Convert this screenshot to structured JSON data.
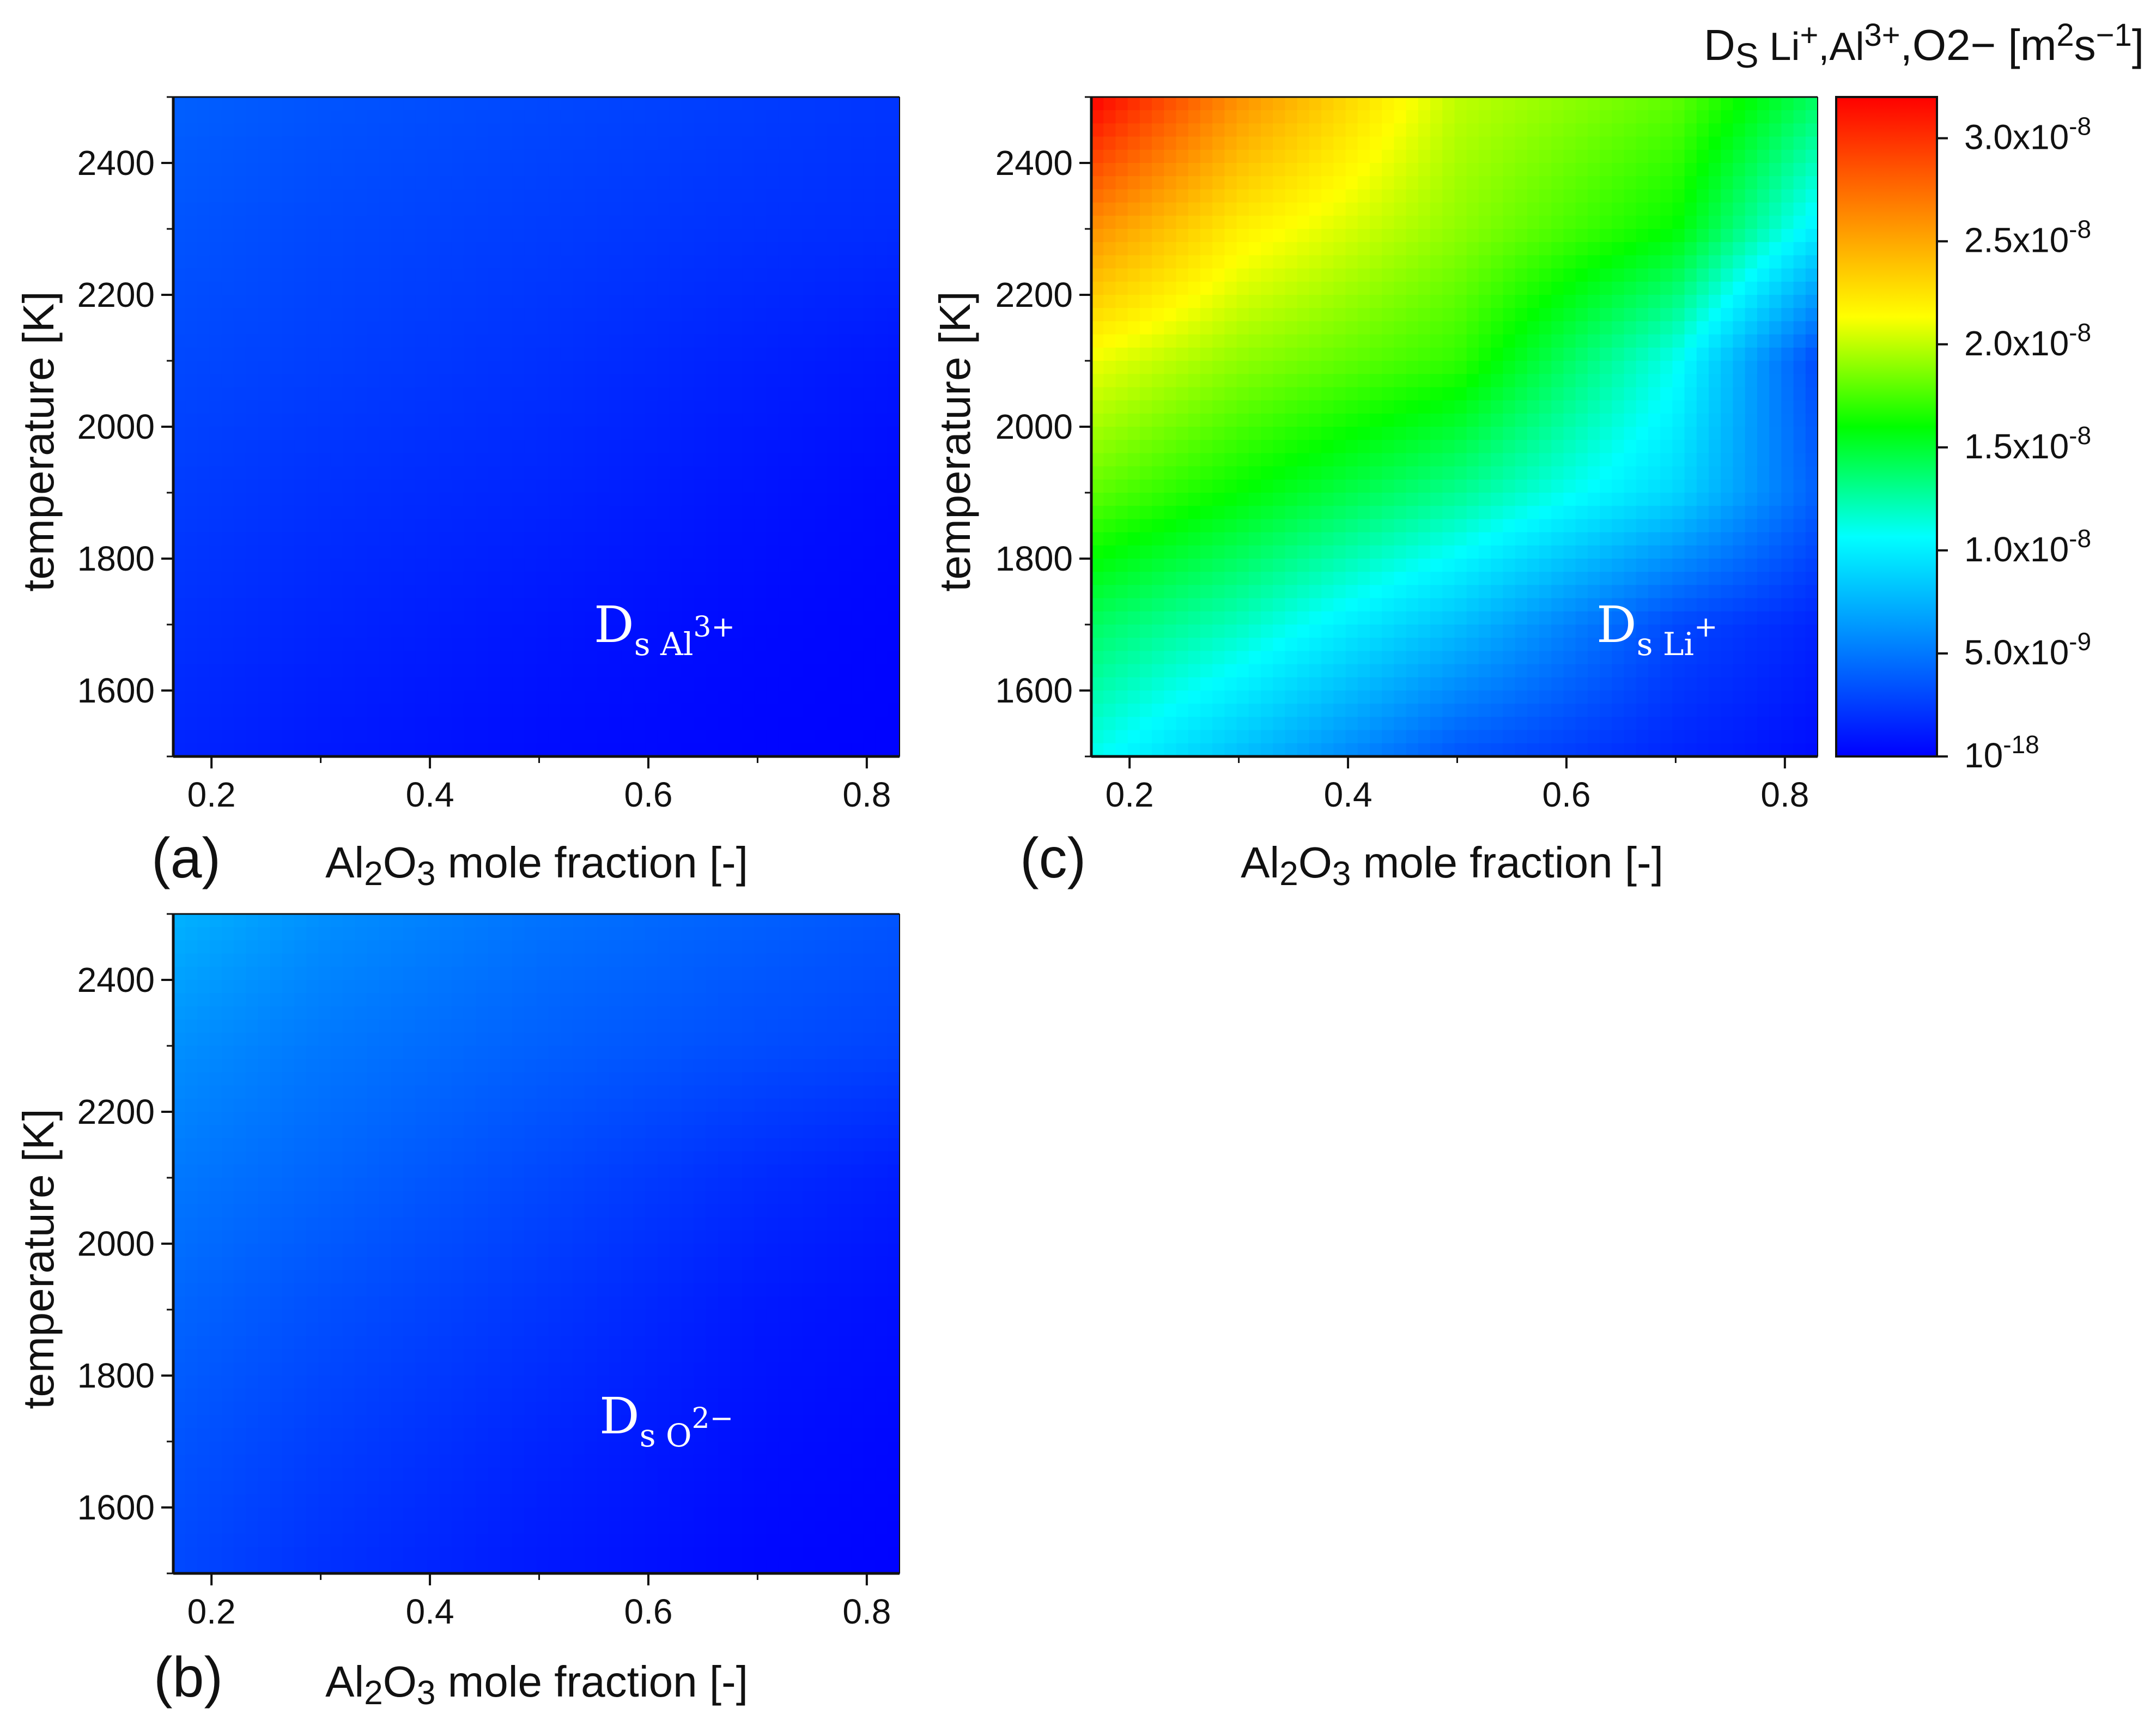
{
  "chart_data": [
    {
      "type": "heatmap",
      "panel_label": "(a)",
      "annotation": {
        "main": "D",
        "sub": "s Al",
        "sup": "3+"
      },
      "xlabel": {
        "pre": "Al",
        "s1": "2",
        "mid": "O",
        "s2": "3",
        "post": " mole fraction [-]"
      },
      "ylabel": "temperature [K]",
      "xlim": [
        0.165,
        0.83
      ],
      "ylim": [
        1500,
        2500
      ],
      "x_ticks": [
        0.2,
        0.4,
        0.6,
        0.8
      ],
      "x_tick_labels": [
        "0.2",
        "0.4",
        "0.6",
        "0.8"
      ],
      "y_ticks": [
        1600,
        1800,
        2000,
        2200,
        2400
      ],
      "y_tick_labels": [
        "1600",
        "1800",
        "2000",
        "2200",
        "2400"
      ],
      "x_values": [
        0.165,
        0.3,
        0.5,
        0.7,
        0.83
      ],
      "y_values": [
        1500,
        1700,
        1900,
        2100,
        2300,
        2500
      ],
      "values": [
        [
          1.5e-09,
          1e-09,
          5e-10,
          2e-10,
          1e-10
        ],
        [
          2e-09,
          1.5e-09,
          9e-10,
          4e-10,
          2e-10
        ],
        [
          2.5e-09,
          2e-09,
          1.5e-09,
          8e-10,
          4e-10
        ],
        [
          3e-09,
          2.6e-09,
          2e-09,
          1.3e-09,
          9e-10
        ],
        [
          3.5e-09,
          3e-09,
          2.5e-09,
          2e-09,
          1.8e-09
        ],
        [
          4e-09,
          3.5e-09,
          3e-09,
          2.5e-09,
          2.2e-09
        ]
      ]
    },
    {
      "type": "heatmap",
      "panel_label": "(b)",
      "annotation": {
        "main": "D",
        "sub": "s O",
        "sup": "2−"
      },
      "xlabel": {
        "pre": "Al",
        "s1": "2",
        "mid": "O",
        "s2": "3",
        "post": " mole fraction [-]"
      },
      "ylabel": "temperature [K]",
      "xlim": [
        0.165,
        0.83
      ],
      "ylim": [
        1500,
        2500
      ],
      "x_ticks": [
        0.2,
        0.4,
        0.6,
        0.8
      ],
      "x_tick_labels": [
        "0.2",
        "0.4",
        "0.6",
        "0.8"
      ],
      "y_ticks": [
        1600,
        1800,
        2000,
        2200,
        2400
      ],
      "y_tick_labels": [
        "1600",
        "1800",
        "2000",
        "2200",
        "2400"
      ],
      "x_values": [
        0.165,
        0.3,
        0.5,
        0.7,
        0.83
      ],
      "y_values": [
        1500,
        1700,
        1900,
        2100,
        2300,
        2500
      ],
      "values": [
        [
          3e-09,
          2e-09,
          1e-09,
          3e-10,
          1e-10
        ],
        [
          3.5e-09,
          2.6e-09,
          1.5e-09,
          6e-10,
          3e-10
        ],
        [
          4.2e-09,
          3.3e-09,
          2.2e-09,
          1e-09,
          6e-10
        ],
        [
          5e-09,
          4.2e-09,
          3e-09,
          1.8e-09,
          1.2e-09
        ],
        [
          6e-09,
          5e-09,
          4e-09,
          3.2e-09,
          2.8e-09
        ],
        [
          7.5e-09,
          6e-09,
          4.8e-09,
          4e-09,
          3.5e-09
        ]
      ]
    },
    {
      "type": "heatmap",
      "panel_label": "(c)",
      "annotation": {
        "main": "D",
        "sub": "s Li",
        "sup": "+"
      },
      "xlabel": {
        "pre": "Al",
        "s1": "2",
        "mid": "O",
        "s2": "3",
        "post": " mole fraction [-]"
      },
      "ylabel": "temperature [K]",
      "xlim": [
        0.165,
        0.83
      ],
      "ylim": [
        1500,
        2500
      ],
      "x_ticks": [
        0.2,
        0.4,
        0.6,
        0.8
      ],
      "x_tick_labels": [
        "0.2",
        "0.4",
        "0.6",
        "0.8"
      ],
      "y_ticks": [
        1600,
        1800,
        2000,
        2200,
        2400
      ],
      "y_tick_labels": [
        "1600",
        "1800",
        "2000",
        "2200",
        "2400"
      ],
      "x_values": [
        0.165,
        0.3,
        0.5,
        0.7,
        0.83
      ],
      "y_values": [
        1500,
        1700,
        1900,
        2100,
        2300,
        2500
      ],
      "values": [
        [
          1.1e-08,
          8e-09,
          3.5e-09,
          1.5e-09,
          5e-10
        ],
        [
          1.4e-08,
          1.2e-08,
          8e-09,
          3e-09,
          1.5e-09
        ],
        [
          1.8e-08,
          1.6e-08,
          1.3e-08,
          9e-09,
          4e-09
        ],
        [
          2.1e-08,
          1.9e-08,
          1.7e-08,
          1.1e-08,
          3e-09
        ],
        [
          2.6e-08,
          2.2e-08,
          1.9e-08,
          1.6e-08,
          1e-08
        ],
        [
          3.2e-08,
          2.6e-08,
          2e-08,
          1.8e-08,
          1.4e-08
        ]
      ]
    }
  ],
  "colorbar": {
    "title": {
      "a": "D",
      "b": "S",
      "c": " Li",
      "d": "+",
      "e": ",Al",
      "f": "3+",
      "g": ",O2− [m",
      "h": "2",
      "i": "s",
      "j": "−1",
      "k": "]"
    },
    "min": 0,
    "max": 3.2e-08,
    "ticks": [
      1e-18,
      5e-09,
      1e-08,
      1.5e-08,
      2e-08,
      2.5e-08,
      3e-08
    ],
    "tick_labels": [
      {
        "mant": "10",
        "exp": "-18"
      },
      {
        "mant": "5.0x10",
        "exp": "-9"
      },
      {
        "mant": "1.0x10",
        "exp": "-8"
      },
      {
        "mant": "1.5x10",
        "exp": "-8"
      },
      {
        "mant": "2.0x10",
        "exp": "-8"
      },
      {
        "mant": "2.5x10",
        "exp": "-8"
      },
      {
        "mant": "3.0x10",
        "exp": "-8"
      }
    ],
    "colors": [
      "#0000ff",
      "#0080ff",
      "#00ffff",
      "#00ff00",
      "#ffff00",
      "#ff8000",
      "#ff0000"
    ]
  }
}
